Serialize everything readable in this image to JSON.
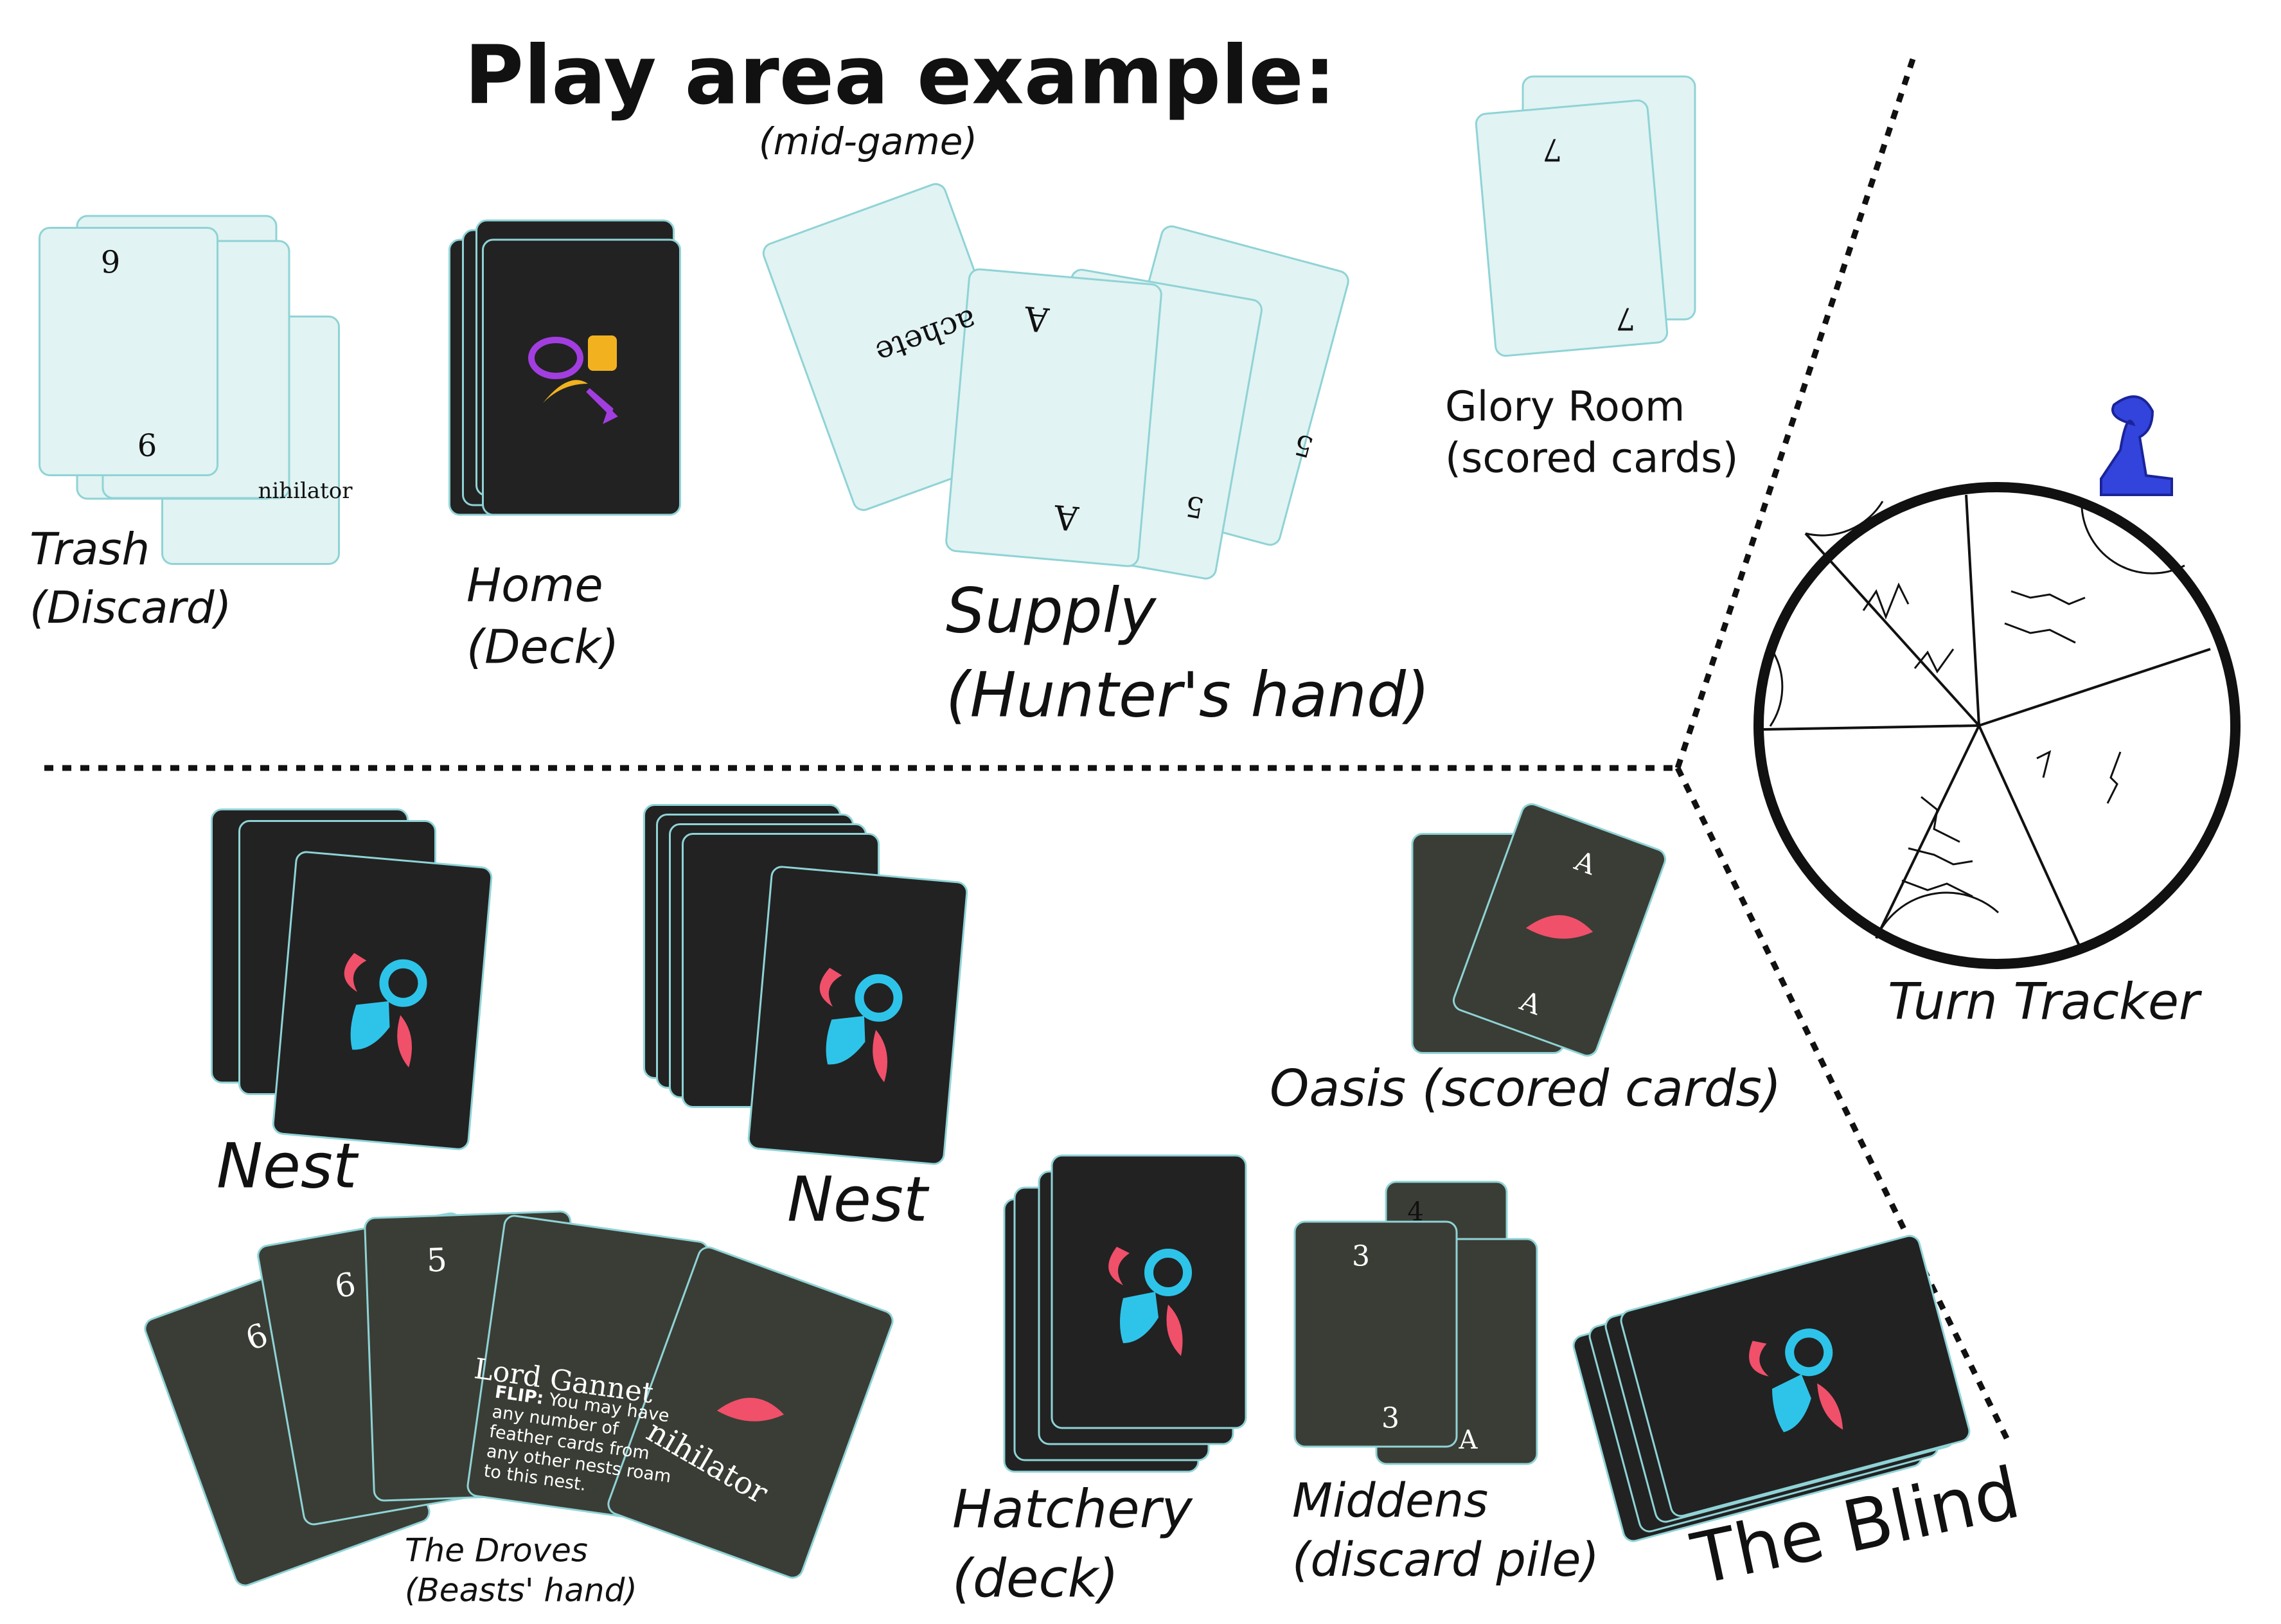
{
  "header": {
    "title": "Play area example:",
    "subtitle": "(mid-game)"
  },
  "zones": {
    "trash": [
      "Trash",
      "(Discard)"
    ],
    "home": [
      "Home",
      "(Deck)"
    ],
    "supply": [
      "Supply",
      "(Hunter's hand)"
    ],
    "glory": [
      "Glory Room",
      "(scored cards)"
    ],
    "tracker": "Turn Tracker",
    "nest_left": "Nest",
    "nest_right": "Nest",
    "oasis": "Oasis (scored cards)",
    "hatchery": [
      "Hatchery",
      "(deck)"
    ],
    "middens": [
      "Middens",
      "(discard pile)"
    ],
    "blind": "The Blind",
    "droves": [
      "The Droves",
      "(Beasts' hand)"
    ]
  },
  "cards": {
    "trash": [
      "9",
      "9",
      "nihilator"
    ],
    "supply": [
      "A",
      "A",
      "5",
      "5",
      "achete"
    ],
    "glory": [
      "7",
      "7"
    ],
    "oasis": [
      "A",
      "A"
    ],
    "middens": [
      "4",
      "3",
      "3",
      "A"
    ],
    "droves": [
      "6",
      "6",
      "5",
      "Lord Gannet",
      "nihilator"
    ],
    "flip_label": "FLIP:",
    "flip_text": "You may have any number of feather cards from any other nests roam to this nest."
  }
}
